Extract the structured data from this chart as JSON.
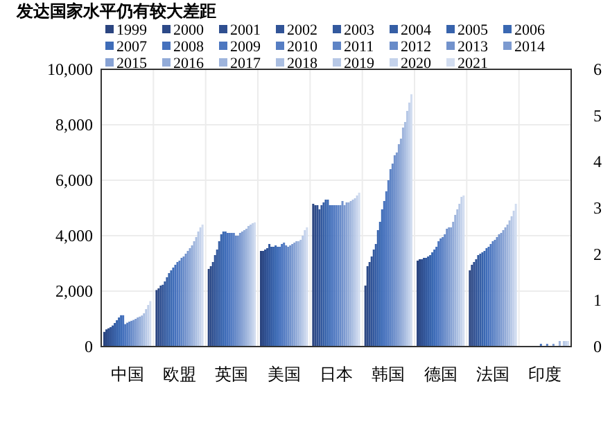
{
  "chart_data": {
    "type": "bar",
    "title": "发达国家水平仍有较大差距",
    "categories": [
      "中国",
      "欧盟",
      "英国",
      "美国",
      "日本",
      "韩国",
      "德国",
      "法国",
      "印度"
    ],
    "ylim": [
      0,
      10000
    ],
    "yticks": [
      {
        "value": 0,
        "label": "0"
      },
      {
        "value": 2000,
        "label": "2,000"
      },
      {
        "value": 4000,
        "label": "4,000"
      },
      {
        "value": 6000,
        "label": "6,000"
      },
      {
        "value": 8000,
        "label": "8,000"
      },
      {
        "value": 10000,
        "label": "10,000"
      }
    ],
    "y2lim": [
      0,
      6
    ],
    "y2ticks": [
      0,
      1,
      2,
      3,
      4,
      5,
      6
    ],
    "grid": true,
    "legend": "top",
    "series": [
      {
        "name": "1999",
        "color": "#2b4580",
        "values": [
          530,
          2040,
          2800,
          3450,
          5150,
          2200,
          3100,
          2750,
          null
        ]
      },
      {
        "name": "2000",
        "color": "#2d4a88",
        "values": [
          620,
          2100,
          2900,
          3450,
          5100,
          2900,
          3150,
          2950,
          null
        ]
      },
      {
        "name": "2001",
        "color": "#2f4f90",
        "values": [
          660,
          2200,
          3050,
          3500,
          5100,
          3050,
          3150,
          3050,
          null
        ]
      },
      {
        "name": "2002",
        "color": "#315497",
        "values": [
          700,
          2230,
          3300,
          3550,
          4950,
          3250,
          3200,
          3150,
          null
        ]
      },
      {
        "name": "2003",
        "color": "#33599e",
        "values": [
          760,
          2350,
          3500,
          3700,
          5100,
          3500,
          3200,
          3300,
          null
        ]
      },
      {
        "name": "2004",
        "color": "#355ea5",
        "values": [
          850,
          2500,
          3800,
          3600,
          5200,
          3700,
          3250,
          3350,
          null
        ]
      },
      {
        "name": "2005",
        "color": "#3763ac",
        "values": [
          950,
          2650,
          4050,
          3600,
          5300,
          4200,
          3300,
          3400,
          null
        ]
      },
      {
        "name": "2006",
        "color": "#3a68b2",
        "values": [
          1050,
          2750,
          4150,
          3650,
          5300,
          4500,
          3400,
          3450,
          null
        ]
      },
      {
        "name": "2007",
        "color": "#3e6cb8",
        "values": [
          1130,
          2850,
          4150,
          3600,
          5100,
          4950,
          3500,
          3550,
          null
        ]
      },
      {
        "name": "2008",
        "color": "#4571bd",
        "values": [
          1130,
          2950,
          4100,
          3600,
          5100,
          5250,
          3600,
          3600,
          100
        ]
      },
      {
        "name": "2009",
        "color": "#4d77c0",
        "values": [
          810,
          3050,
          4100,
          3700,
          5100,
          5600,
          3800,
          3700,
          null
        ]
      },
      {
        "name": "2010",
        "color": "#557dc3",
        "values": [
          860,
          3100,
          4100,
          3750,
          5100,
          6000,
          3900,
          3800,
          null
        ]
      },
      {
        "name": "2011",
        "color": "#5e84c6",
        "values": [
          900,
          3200,
          4100,
          3650,
          5100,
          6400,
          3950,
          3850,
          100
        ]
      },
      {
        "name": "2012",
        "color": "#688bc9",
        "values": [
          930,
          3250,
          4000,
          3600,
          5100,
          6600,
          4050,
          3950,
          null
        ]
      },
      {
        "name": "2013",
        "color": "#7292cc",
        "values": [
          960,
          3350,
          4000,
          3650,
          5250,
          6900,
          4250,
          4050,
          null
        ]
      },
      {
        "name": "2014",
        "color": "#7c9ad0",
        "values": [
          1000,
          3450,
          4100,
          3700,
          5100,
          7000,
          4300,
          4100,
          100
        ]
      },
      {
        "name": "2015",
        "color": "#87a2d4",
        "values": [
          1050,
          3550,
          4150,
          3750,
          5200,
          7300,
          4300,
          4200,
          null
        ]
      },
      {
        "name": "2016",
        "color": "#92abd8",
        "values": [
          1080,
          3650,
          4200,
          3800,
          5200,
          7500,
          4500,
          4300,
          null
        ]
      },
      {
        "name": "2017",
        "color": "#9eb4dc",
        "values": [
          1120,
          3800,
          4250,
          3800,
          5250,
          7900,
          4750,
          4400,
          200
        ]
      },
      {
        "name": "2018",
        "color": "#aabee1",
        "values": [
          1200,
          3950,
          4350,
          3850,
          5300,
          8100,
          4950,
          4550,
          null
        ]
      },
      {
        "name": "2019",
        "color": "#b7c8e6",
        "values": [
          1350,
          4150,
          4400,
          4000,
          5350,
          8500,
          5150,
          4700,
          200
        ]
      },
      {
        "name": "2020",
        "color": "#c4d2eb",
        "values": [
          1500,
          4300,
          4450,
          4200,
          5450,
          8800,
          5400,
          4900,
          200
        ]
      },
      {
        "name": "2021",
        "color": "#d2ddf0",
        "values": [
          1640,
          4400,
          4480,
          4300,
          5550,
          9100,
          5450,
          5150,
          200
        ]
      }
    ]
  }
}
